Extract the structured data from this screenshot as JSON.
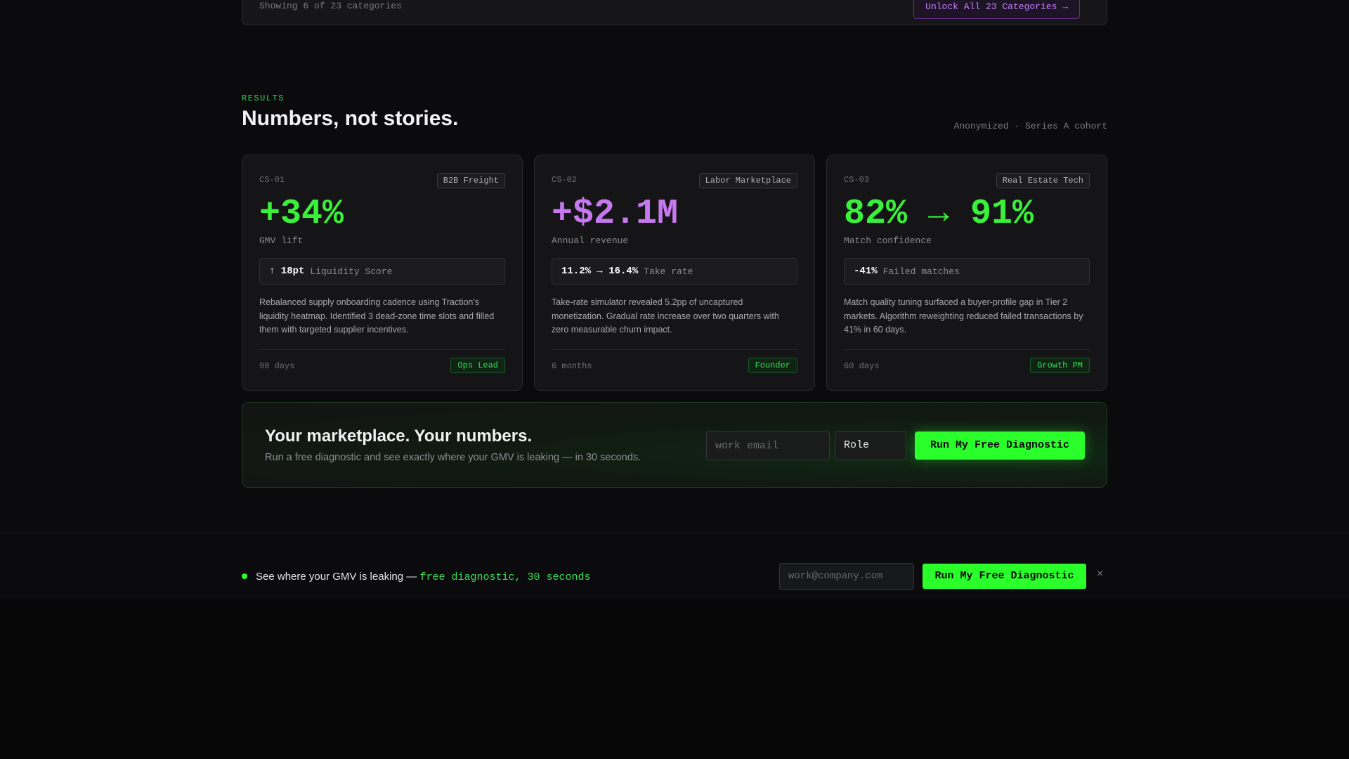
{
  "top_panel": {
    "showing_text": "Showing 6 of 23 categories",
    "unlock_label": "Unlock All 23 Categories →"
  },
  "results": {
    "eyebrow": "RESULTS",
    "title": "Numbers, not stories.",
    "cohort_note": "Anonymized · Series A cohort"
  },
  "cards": [
    {
      "id": "CS-01",
      "tag": "B2B Freight",
      "metric": "+34%",
      "metric_color": "#39f03a",
      "metric_label": "GMV lift",
      "stat_value": "↑ 18pt",
      "stat_label": "Liquidity Score",
      "description": "Rebalanced supply onboarding cadence using Traction's liquidity heatmap. Identified 3 dead-zone time slots and filled them with targeted supplier incentives.",
      "duration": "90 days",
      "role": "Ops Lead"
    },
    {
      "id": "CS-02",
      "tag": "Labor Marketplace",
      "metric": "+$2.1M",
      "metric_color": "#c678ee",
      "metric_label": "Annual revenue",
      "stat_value": "11.2% → 16.4%",
      "stat_label": "Take rate",
      "description": "Take-rate simulator revealed 5.2pp of uncaptured monetization. Gradual rate increase over two quarters with zero measurable churn impact.",
      "duration": "6 months",
      "role": "Founder"
    },
    {
      "id": "CS-03",
      "tag": "Real Estate Tech",
      "metric": "82% → 91%",
      "metric_color": "#39f03a",
      "metric_label": "Match confidence",
      "stat_value": "-41%",
      "stat_label": "Failed matches",
      "description": "Match quality tuning surfaced a buyer-profile gap in Tier 2 markets. Algorithm reweighting reduced failed transactions by 41% in 60 days.",
      "duration": "60 days",
      "role": "Growth PM"
    }
  ],
  "cta": {
    "title": "Your marketplace. Your numbers.",
    "subtitle": "Run a free diagnostic and see exactly where your GMV is leaking — in 30 seconds.",
    "email_placeholder": "work email",
    "role_value": "Role",
    "button_label": "Run My Free Diagnostic"
  },
  "sticky_bar": {
    "text": "See where your GMV is leaking — ",
    "accent": "free diagnostic, 30 seconds",
    "email_placeholder": "work@company.com",
    "button_label": "Run My Free Diagnostic",
    "close_label": "×"
  },
  "colors": {
    "accent_green": "#2bff2b",
    "accent_purple": "#c678ee",
    "background": "#0b0b0d"
  }
}
